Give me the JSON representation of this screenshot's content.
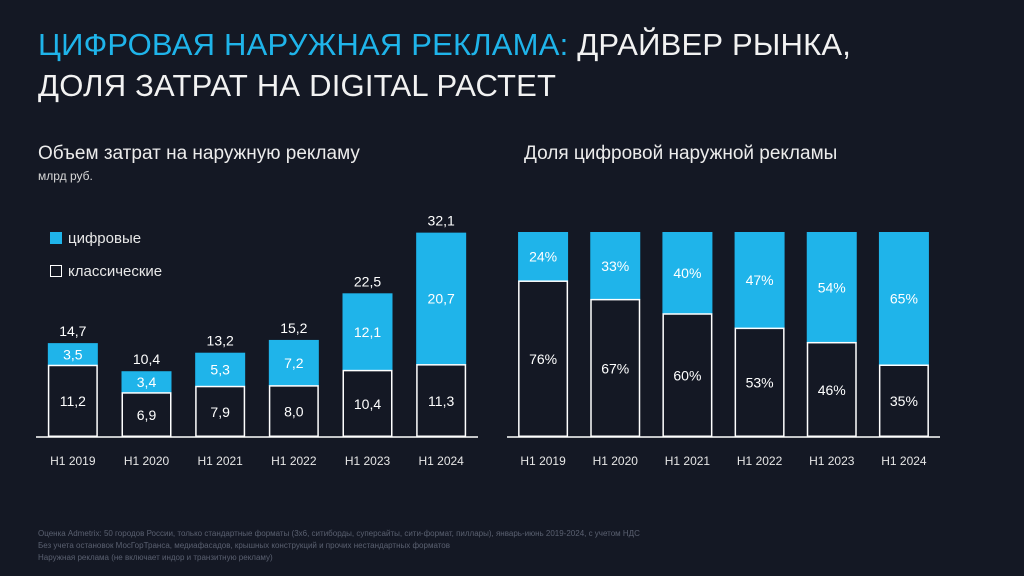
{
  "title": {
    "accent": "ЦИФРОВАЯ НАРУЖНАЯ РЕКЛАМА:",
    "rest": " ДРАЙВЕР РЫНКА,",
    "line2": "ДОЛЯ ЗАТРАТ НА DIGITAL РАСТЕТ"
  },
  "legend": {
    "digital": "цифровые",
    "classic": "классические"
  },
  "colors": {
    "digital": "#1fb4ea",
    "classic_fill": "#141824",
    "classic_stroke": "#ffffff",
    "background": "#141824"
  },
  "chart_data": [
    {
      "type": "bar",
      "stacked": true,
      "title": "Объем затрат на наружную рекламу",
      "unit": "млрд руб.",
      "categories": [
        "H1 2019",
        "H1 2020",
        "H1 2021",
        "H1 2022",
        "H1 2023",
        "H1 2024"
      ],
      "series": [
        {
          "name": "классические",
          "values": [
            "11,2",
            "6,9",
            "7,9",
            "8,0",
            "10,4",
            "11,3"
          ]
        },
        {
          "name": "цифровые",
          "values": [
            "3,5",
            "3,4",
            "5,3",
            "7,2",
            "12,1",
            "20,7"
          ]
        }
      ],
      "totals": [
        "14,7",
        "10,4",
        "13,2",
        "15,2",
        "22,5",
        "32,1"
      ],
      "ylim": [
        0,
        32.1
      ],
      "legend": "top-left",
      "grid": false
    },
    {
      "type": "bar",
      "stacked": true,
      "percent": true,
      "title": "Доля цифровой наружной рекламы",
      "categories": [
        "H1 2019",
        "H1 2020",
        "H1 2021",
        "H1 2022",
        "H1 2023",
        "H1 2024"
      ],
      "series": [
        {
          "name": "классические",
          "values": [
            76,
            67,
            60,
            53,
            46,
            35
          ]
        },
        {
          "name": "цифровые",
          "values": [
            24,
            33,
            40,
            47,
            54,
            65
          ]
        }
      ],
      "ylim": [
        0,
        100
      ],
      "grid": false
    }
  ],
  "footnotes": [
    "Оценка Admetrix: 50 городов России, только стандартные форматы (3х6, ситиборды, суперсайты, сити-формат, пиллары), январь-июнь 2019-2024, с учетом НДС",
    "Без учета остановок МосГорТранса, медиафасадов, крышных конструкций и прочих нестандартных форматов",
    "Наружная реклама (не включает индор и транзитную рекламу)"
  ]
}
